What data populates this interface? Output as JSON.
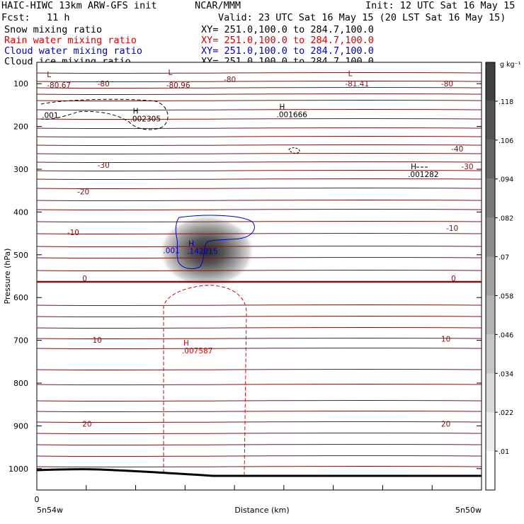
{
  "header": {
    "model_title": "HAIC-HIWC 13km ARW-GFS init",
    "org": "NCAR/MMM",
    "init": "Init: 12 UTC Sat 16 May 15",
    "fcst_label": "Fcst:",
    "fcst_value": "11 h",
    "valid": "Valid: 23 UTC Sat 16 May 15 (20 LST Sat 16 May 15)"
  },
  "fields": [
    {
      "name": "Snow mixing ratio",
      "xy": "XY= 251.0,100.0 to 284.7,100.0",
      "color": "#000000"
    },
    {
      "name": "Rain water mixing ratio",
      "xy": "XY= 251.0,100.0 to 284.7,100.0",
      "color": "#e00000"
    },
    {
      "name": "Cloud water mixing ratio",
      "xy": "XY= 251.0,100.0 to 284.7,100.0",
      "color": "#0000cc"
    },
    {
      "name": "Cloud ice mixing ratio",
      "xy": "XY= 251.0,100.0 to 284.7,100.0",
      "color": "#000000"
    }
  ],
  "chart_data": {
    "type": "heatmap",
    "xlabel": "Distance (km)",
    "ylabel": "Pressure (hPa)",
    "xlim": [
      0,
      440
    ],
    "ylim": [
      1050,
      50
    ],
    "x_start_label": "5n54w",
    "x_end_label": "5n50w",
    "x_tick_labels": [
      "0"
    ],
    "y_ticks": [
      100,
      200,
      300,
      400,
      500,
      600,
      700,
      800,
      900,
      1000
    ],
    "colorbar": {
      "unit": "g kg⁻¹",
      "levels": [
        0.01,
        0.022,
        0.034,
        0.046,
        0.058,
        0.07,
        0.082,
        0.094,
        0.106,
        0.118
      ],
      "labels": [
        ".01",
        ".022",
        ".034",
        ".046",
        ".058",
        ".07",
        ".082",
        ".094",
        ".106",
        ".118"
      ]
    },
    "cloud_ice_max": {
      "label": "H",
      "value": ".142215",
      "x": 150,
      "p": 480
    },
    "temperature_labels": [
      {
        "text": "-80.67",
        "x": 10,
        "p": 110
      },
      {
        "text": "-80",
        "x": 60,
        "p": 106
      },
      {
        "text": "-80.96",
        "x": 128,
        "p": 110
      },
      {
        "text": "-80",
        "x": 185,
        "p": 96
      },
      {
        "text": "-81.41",
        "x": 305,
        "p": 106
      },
      {
        "text": "-80",
        "x": 400,
        "p": 106
      },
      {
        "text": "-40",
        "x": 410,
        "p": 259
      },
      {
        "text": "-30",
        "x": 60,
        "p": 297
      },
      {
        "text": "-30",
        "x": 420,
        "p": 300
      },
      {
        "text": "-20",
        "x": 40,
        "p": 359
      },
      {
        "text": "-10",
        "x": 30,
        "p": 454
      },
      {
        "text": "-10",
        "x": 405,
        "p": 444
      },
      {
        "text": "0",
        "x": 45,
        "p": 562
      },
      {
        "text": "0",
        "x": 410,
        "p": 562
      },
      {
        "text": "10",
        "x": 55,
        "p": 706
      },
      {
        "text": "10",
        "x": 400,
        "p": 703
      },
      {
        "text": "20",
        "x": 45,
        "p": 902
      },
      {
        "text": "20",
        "x": 400,
        "p": 902
      }
    ],
    "temperature_extrema": [
      {
        "label": "L",
        "x": 10,
        "p": 85
      },
      {
        "label": "L",
        "x": 130,
        "p": 80
      },
      {
        "label": "L",
        "x": 308,
        "p": 82
      }
    ],
    "snow_max": [
      {
        "label": "H",
        "value": ".002305",
        "x": 95,
        "p": 170
      },
      {
        "label": "H",
        "value": ".001666",
        "x": 240,
        "p": 160
      },
      {
        "label": "H",
        "value": ".001282",
        "x": 370,
        "p": 300
      }
    ],
    "snow_contour_label": {
      "value": ".001",
      "x": 5,
      "p": 180
    },
    "cloud_water_contour_label": {
      "value": ".001",
      "x": 125,
      "p": 496
    },
    "rain_max": {
      "label": "H",
      "value": ".007587",
      "x": 145,
      "p": 712
    }
  }
}
